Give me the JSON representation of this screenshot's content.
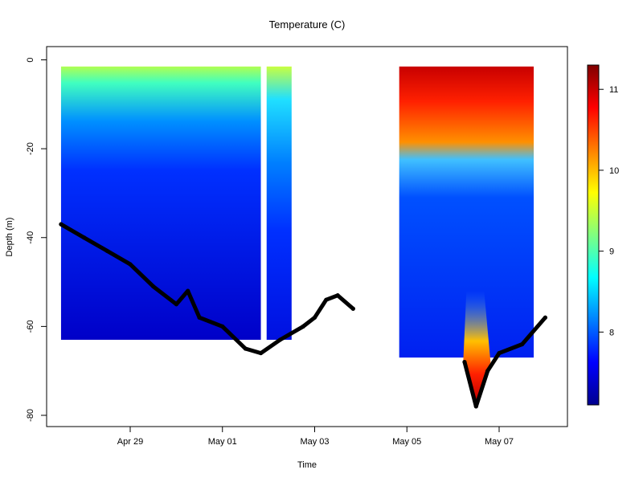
{
  "chart_data": {
    "type": "heatmap",
    "title": "Temperature (C)",
    "xlabel": "Time",
    "ylabel": "Depth (m)",
    "x_ticks": [
      "Apr 29",
      "May 01",
      "May 03",
      "May 05",
      "May 07"
    ],
    "y_ticks": [
      0,
      -20,
      -40,
      -60,
      -80
    ],
    "y_range": [
      -80,
      0
    ],
    "colorbar": {
      "ticks": [
        8,
        9,
        10,
        11
      ],
      "range": [
        7.1,
        11.3
      ],
      "colors": [
        "#00008f",
        "#0000ff",
        "#0080ff",
        "#00ffff",
        "#80ff80",
        "#ffff00",
        "#ff8000",
        "#ff0000",
        "#800000"
      ]
    },
    "segments": [
      {
        "start": "Apr 27 12:00",
        "end": "May 01 20:00",
        "top_temp": 9.2,
        "min_temp": 7.3
      },
      {
        "start": "May 01 23:00",
        "end": "May 02 12:00",
        "top_temp": 9.3,
        "min_temp": 7.6
      },
      {
        "start": "May 04 20:00",
        "end": "May 07 18:00",
        "top_temp": 10.8,
        "min_temp": 7.6
      }
    ],
    "bottom_depth_series": {
      "name": "",
      "color": "#000000",
      "points": [
        {
          "date": "Apr 27 12:00",
          "depth": -37
        },
        {
          "date": "Apr 28 00:00",
          "depth": -40
        },
        {
          "date": "Apr 28 12:00",
          "depth": -43
        },
        {
          "date": "Apr 29 00:00",
          "depth": -46
        },
        {
          "date": "Apr 29 12:00",
          "depth": -51
        },
        {
          "date": "Apr 30 00:00",
          "depth": -55
        },
        {
          "date": "Apr 30 06:00",
          "depth": -52
        },
        {
          "date": "Apr 30 12:00",
          "depth": -58
        },
        {
          "date": "May 01 00:00",
          "depth": -60
        },
        {
          "date": "May 01 12:00",
          "depth": -65
        },
        {
          "date": "May 01 20:00",
          "depth": -66
        },
        {
          "date": "May 02 06:00",
          "depth": -63
        },
        {
          "date": "May 02 18:00",
          "depth": -60
        },
        {
          "date": "May 03 00:00",
          "depth": -58
        },
        {
          "date": "May 03 06:00",
          "depth": -54
        },
        {
          "date": "May 03 12:00",
          "depth": -53
        },
        {
          "date": "May 03 20:00",
          "depth": -56
        },
        {
          "date": "May 06 06:00",
          "depth": -68
        },
        {
          "date": "May 06 12:00",
          "depth": -78
        },
        {
          "date": "May 06 18:00",
          "depth": -70
        },
        {
          "date": "May 07 00:00",
          "depth": -66
        },
        {
          "date": "May 07 12:00",
          "depth": -64
        },
        {
          "date": "May 08 00:00",
          "depth": -58
        }
      ]
    }
  }
}
